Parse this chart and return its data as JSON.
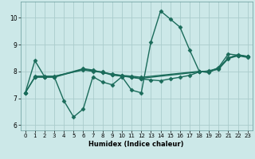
{
  "xlabel": "Humidex (Indice chaleur)",
  "xlim": [
    -0.5,
    23.5
  ],
  "ylim": [
    5.8,
    10.6
  ],
  "yticks": [
    6,
    7,
    8,
    9,
    10
  ],
  "xticks": [
    0,
    1,
    2,
    3,
    4,
    5,
    6,
    7,
    8,
    9,
    10,
    11,
    12,
    13,
    14,
    15,
    16,
    17,
    18,
    19,
    20,
    21,
    22,
    23
  ],
  "bg_color": "#cce8e8",
  "grid_color": "#aacccc",
  "line_color": "#1a6b5a",
  "s1_x": [
    0,
    1,
    2,
    3,
    4,
    5,
    6,
    7,
    8,
    9,
    10,
    11,
    12,
    13,
    14,
    15,
    16,
    17,
    18,
    19,
    20,
    21,
    22,
    23
  ],
  "s1_y": [
    7.2,
    8.4,
    7.8,
    7.8,
    6.9,
    6.3,
    6.6,
    7.8,
    7.6,
    7.5,
    7.8,
    7.3,
    7.2,
    9.1,
    10.25,
    9.95,
    9.65,
    8.8,
    8.0,
    7.95,
    8.15,
    8.65,
    8.6,
    8.55
  ],
  "s2_x": [
    0,
    1,
    2,
    3,
    6,
    7,
    8,
    9,
    10,
    11,
    12,
    18,
    19,
    20,
    21,
    22,
    23
  ],
  "s2_y": [
    7.2,
    7.8,
    7.8,
    7.8,
    8.1,
    8.05,
    7.95,
    7.9,
    7.85,
    7.82,
    7.78,
    8.0,
    8.0,
    8.1,
    8.5,
    8.6,
    8.55
  ],
  "s3_x": [
    0,
    1,
    2,
    3,
    6,
    7,
    8,
    9,
    10,
    11,
    12,
    13,
    14,
    15,
    16,
    17,
    18,
    19,
    20,
    21,
    22,
    23
  ],
  "s3_y": [
    7.2,
    7.78,
    7.78,
    7.78,
    8.08,
    8.02,
    7.98,
    7.88,
    7.84,
    7.78,
    7.72,
    7.68,
    7.65,
    7.72,
    7.78,
    7.85,
    7.98,
    8.0,
    8.08,
    8.48,
    8.58,
    8.52
  ],
  "s4_x": [
    1,
    2,
    3,
    6,
    7,
    8,
    9,
    10,
    11,
    12,
    18,
    19,
    20,
    21,
    22,
    23
  ],
  "s4_y": [
    7.82,
    7.82,
    7.82,
    8.05,
    8.0,
    7.96,
    7.86,
    7.82,
    7.78,
    7.74,
    7.98,
    8.02,
    8.12,
    8.5,
    8.62,
    8.56
  ],
  "line_width": 1.0,
  "marker": "D",
  "marker_size": 2.5
}
